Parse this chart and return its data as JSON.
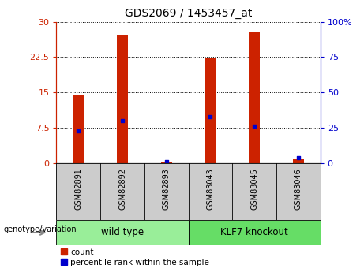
{
  "title": "GDS2069 / 1453457_at",
  "samples": [
    "GSM82891",
    "GSM82892",
    "GSM82893",
    "GSM83043",
    "GSM83045",
    "GSM83046"
  ],
  "count_values": [
    14.5,
    27.3,
    0.15,
    22.4,
    28.0,
    0.8
  ],
  "percentile_values": [
    23.0,
    30.0,
    1.0,
    33.0,
    26.0,
    4.0
  ],
  "left_ylim": [
    0,
    30
  ],
  "right_ylim": [
    0,
    100
  ],
  "left_yticks": [
    0,
    7.5,
    15,
    22.5,
    30
  ],
  "left_yticklabels": [
    "0",
    "7.5",
    "15",
    "22.5",
    "30"
  ],
  "right_yticks": [
    0,
    25,
    50,
    75,
    100
  ],
  "right_yticklabels": [
    "0",
    "25",
    "50",
    "75",
    "100%"
  ],
  "left_tick_color": "#cc2200",
  "right_tick_color": "#0000cc",
  "bar_color": "#cc2200",
  "marker_color": "#0000cc",
  "groups": [
    {
      "label": "wild type",
      "indices": [
        0,
        1,
        2
      ],
      "color": "#99ee99"
    },
    {
      "label": "KLF7 knockout",
      "indices": [
        3,
        4,
        5
      ],
      "color": "#66dd66"
    }
  ],
  "legend_items": [
    {
      "label": "count",
      "color": "#cc2200"
    },
    {
      "label": "percentile rank within the sample",
      "color": "#0000cc"
    }
  ],
  "genotype_label": "genotype/variation",
  "bar_width": 0.25,
  "fig_width": 4.61,
  "fig_height": 3.45,
  "dpi": 100
}
